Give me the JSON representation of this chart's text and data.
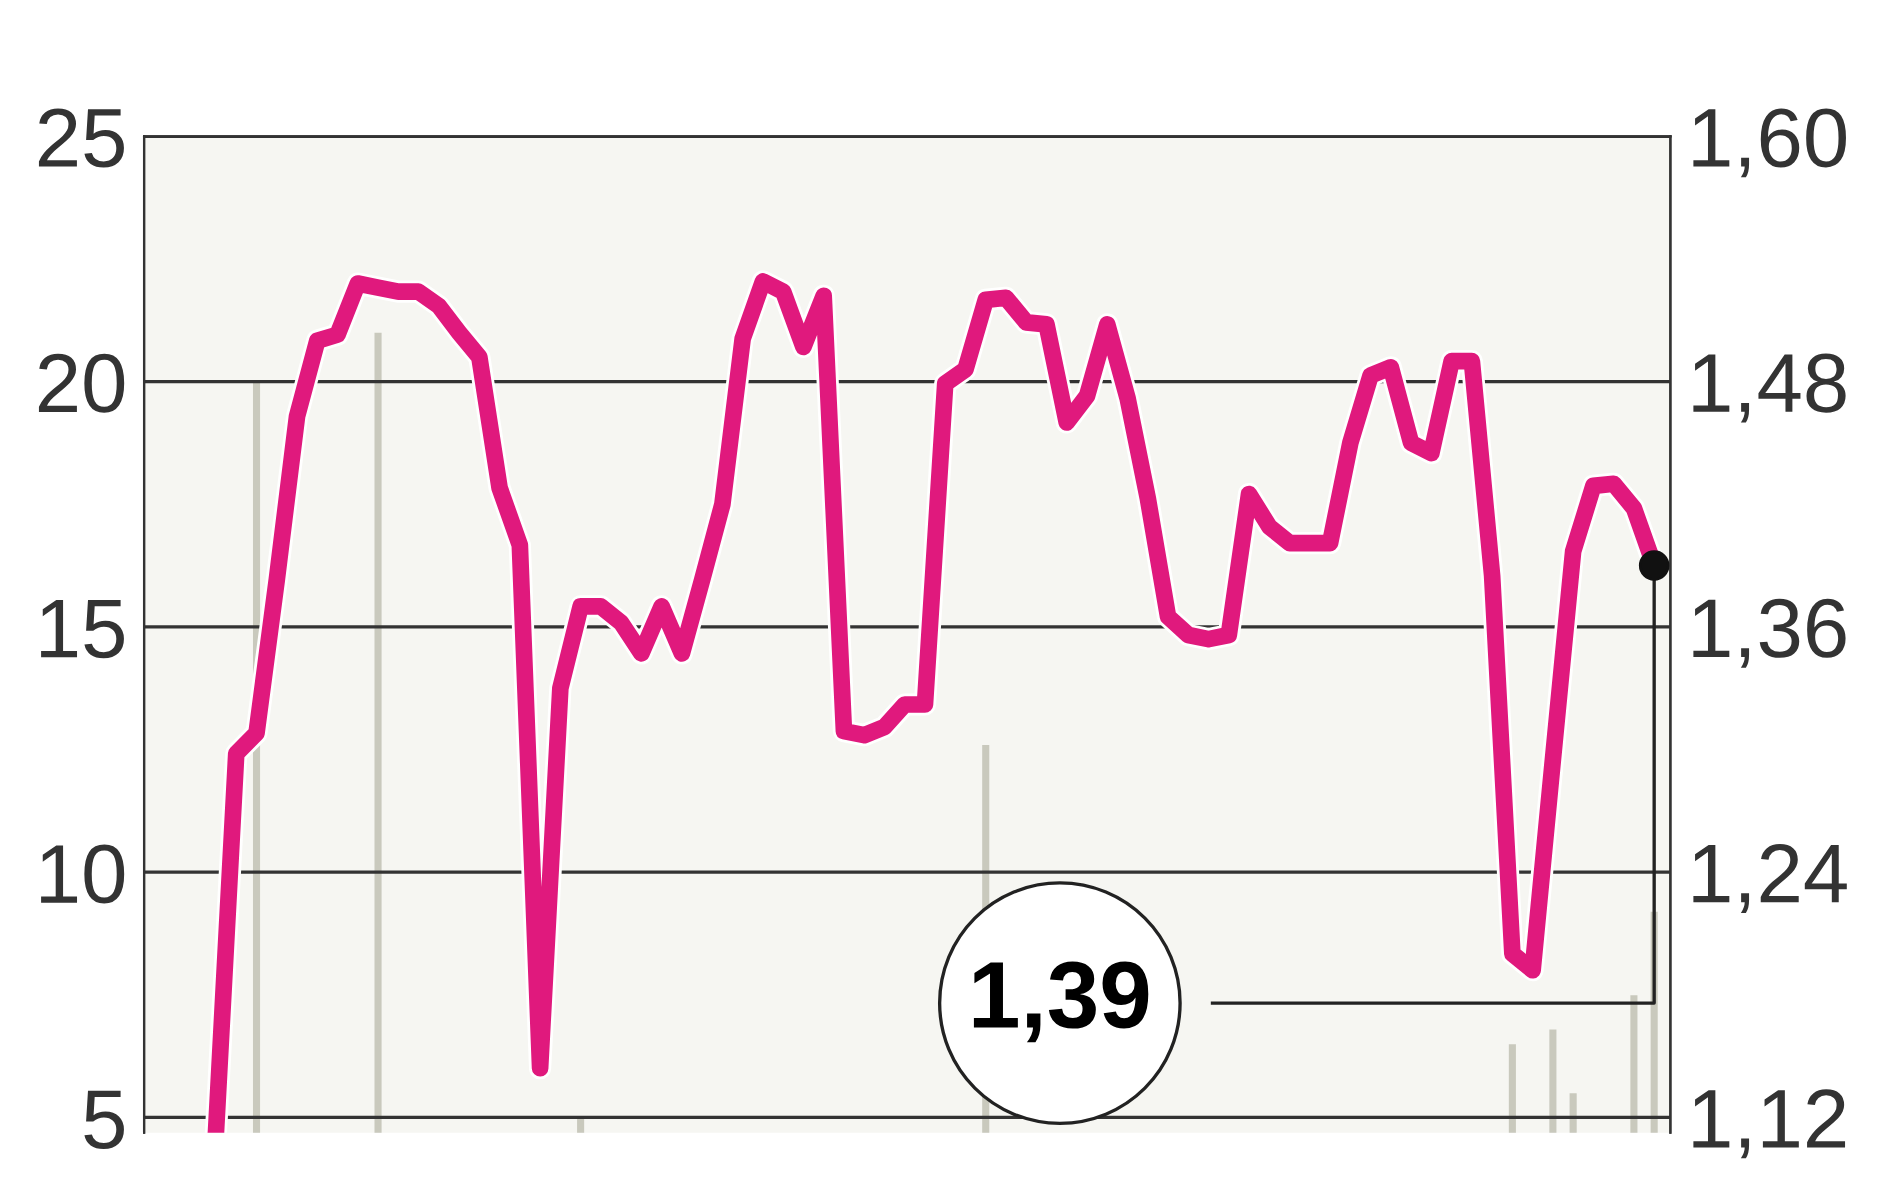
{
  "chart_data": {
    "type": "line",
    "categories": [
      null,
      null,
      null,
      null,
      null,
      null,
      null,
      null,
      null,
      null,
      null,
      null,
      null,
      null,
      null,
      null,
      null,
      null,
      null,
      null,
      null,
      null,
      null,
      null,
      null,
      null,
      null,
      null,
      null,
      null,
      null,
      null,
      null,
      null,
      null,
      null,
      null,
      null,
      null,
      null,
      null,
      null,
      null,
      null,
      null,
      null,
      null,
      null,
      null,
      null,
      null,
      null,
      null,
      null,
      null,
      null,
      null,
      null,
      null,
      null,
      null,
      null,
      null,
      null,
      null,
      null,
      null,
      null,
      null,
      null,
      null,
      null
    ],
    "series": [
      {
        "type": "bar",
        "color": "#c9c9bd",
        "values": [
          null,
          null,
          20.0,
          null,
          null,
          null,
          null,
          null,
          21.0,
          null,
          null,
          null,
          null,
          null,
          null,
          null,
          null,
          null,
          5.0,
          null,
          null,
          null,
          null,
          null,
          null,
          null,
          null,
          null,
          null,
          null,
          null,
          null,
          null,
          null,
          null,
          null,
          null,
          null,
          12.6,
          null,
          null,
          null,
          null,
          null,
          null,
          null,
          null,
          null,
          null,
          null,
          null,
          null,
          null,
          null,
          null,
          null,
          null,
          null,
          null,
          null,
          null,
          null,
          null,
          null,
          6.5,
          null,
          6.8,
          5.5,
          null,
          null,
          7.5,
          9.2
        ]
      },
      {
        "axis": "y2",
        "color": "#e0197d",
        "values": [
          1.113,
          1.298,
          1.308,
          1.383,
          1.463,
          1.5,
          1.503,
          1.528,
          1.526,
          1.524,
          1.524,
          1.517,
          1.504,
          1.492,
          1.428,
          1.4,
          1.144,
          1.33,
          1.37,
          1.37,
          1.362,
          1.347,
          1.37,
          1.347,
          1.383,
          1.42,
          1.501,
          1.529,
          1.524,
          1.497,
          1.522,
          1.309,
          1.307,
          1.311,
          1.322,
          1.322,
          1.479,
          1.486,
          1.52,
          1.521,
          1.509,
          1.508,
          1.46,
          1.473,
          1.508,
          1.472,
          1.423,
          1.365,
          1.356,
          1.354,
          1.356,
          1.425,
          1.409,
          1.401,
          1.401,
          1.401,
          1.45,
          1.483,
          1.487,
          1.45,
          1.445,
          1.49,
          1.49,
          1.385,
          1.2,
          1.192,
          1.295,
          1.397,
          1.429,
          1.43,
          1.418,
          1.39
        ]
      }
    ],
    "ylim": [
      4.7,
      25
    ],
    "yticks": [
      5,
      10,
      15,
      20,
      25
    ],
    "y2lim": [
      1.1125,
      1.6
    ],
    "y2ticks": [
      {
        "value": 1.12,
        "label": "1,12"
      },
      {
        "value": 1.24,
        "label": "1,24"
      },
      {
        "value": 1.36,
        "label": "1,36"
      },
      {
        "value": 1.48,
        "label": "1,48"
      },
      {
        "value": 1.6,
        "label": "1,60"
      }
    ],
    "annotations": [
      "1,39"
    ],
    "grid": "y",
    "legend": false,
    "marker": "none",
    "line_style": "solid"
  }
}
